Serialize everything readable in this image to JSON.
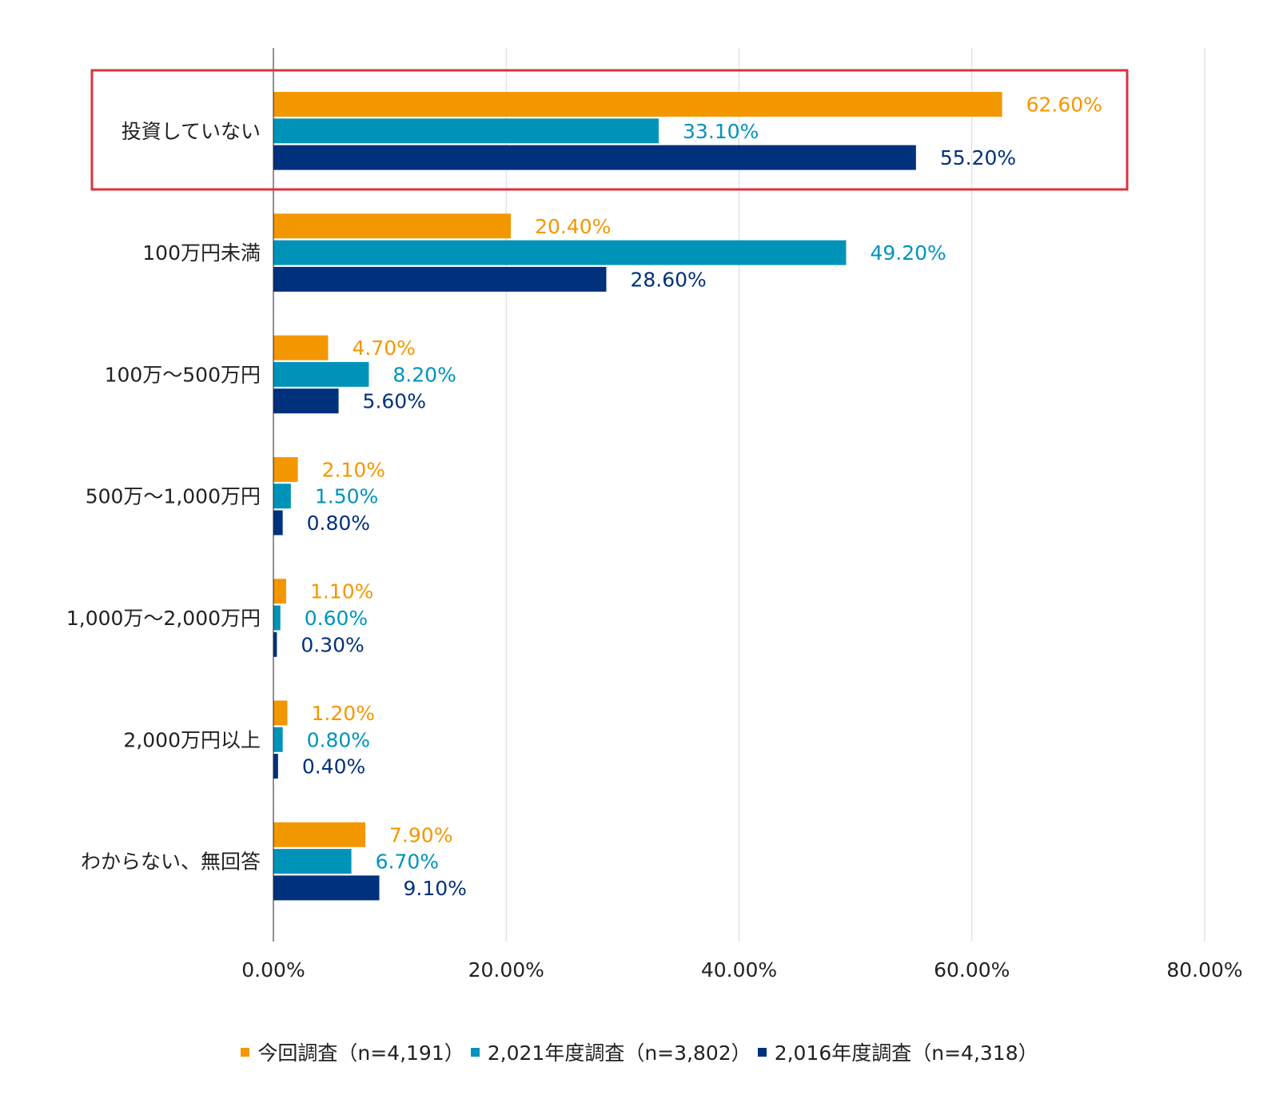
{
  "chart_data": {
    "type": "bar",
    "orientation": "horizontal",
    "categories": [
      "投資していない",
      "100万円未満",
      "100万～500万円",
      "500万～1,000万円",
      "1,000万～2,000万円",
      "2,000万円以上",
      "わからない、無回答"
    ],
    "series": [
      {
        "name": "今回調査（n=4,191）",
        "color": "#F39700",
        "values": [
          62.6,
          20.4,
          4.7,
          2.1,
          1.1,
          1.2,
          7.9
        ],
        "labels": [
          "62.60%",
          "20.40%",
          "4.70%",
          "2.10%",
          "1.10%",
          "1.20%",
          "7.90%"
        ]
      },
      {
        "name": "2,021年度調査（n=3,802）",
        "color": "#0093BA",
        "values": [
          33.1,
          49.2,
          8.2,
          1.5,
          0.6,
          0.8,
          6.7
        ],
        "labels": [
          "33.10%",
          "49.20%",
          "8.20%",
          "1.50%",
          "0.60%",
          "0.80%",
          "6.70%"
        ]
      },
      {
        "name": "2,016年度調査（n=4,318）",
        "color": "#00317C",
        "values": [
          55.2,
          28.6,
          5.6,
          0.8,
          0.3,
          0.4,
          9.1
        ],
        "labels": [
          "55.20%",
          "28.60%",
          "5.60%",
          "0.80%",
          "0.30%",
          "0.40%",
          "9.10%"
        ]
      }
    ],
    "xlim": [
      0,
      80
    ],
    "ticks": [
      0,
      20,
      40,
      60,
      80
    ],
    "tick_labels": [
      "0.00%",
      "20.00%",
      "40.00%",
      "60.00%",
      "80.00%"
    ],
    "grid": true,
    "legend_position": "bottom",
    "highlight_category": "投資していない",
    "highlight_color": "#D9343F"
  }
}
